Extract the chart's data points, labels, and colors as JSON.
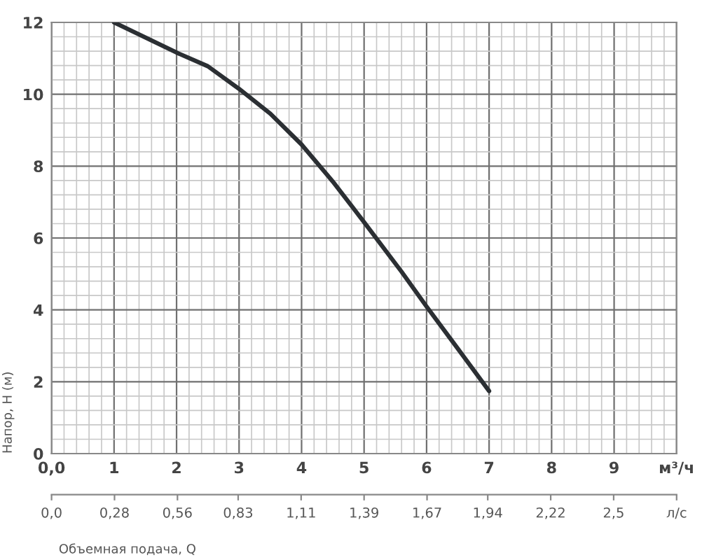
{
  "chart_data": {
    "type": "line",
    "xlabel": "Объемная подача, Q",
    "ylabel": "Напор, H (м)",
    "x": [
      1,
      2,
      2.5,
      3,
      3.5,
      4,
      4.5,
      5,
      5.6,
      6,
      6.5,
      7
    ],
    "series": [
      {
        "color": "#2b2f33",
        "values": [
          12,
          11.16,
          10.78,
          10.15,
          9.46,
          8.6,
          7.57,
          6.44,
          5.06,
          4.09,
          2.92,
          1.74
        ]
      }
    ],
    "xlim": [
      0,
      10
    ],
    "ylim": [
      0,
      12
    ],
    "xticks": [
      {
        "value": 0,
        "label": "0,0"
      },
      1,
      2,
      3,
      4,
      5,
      6,
      7,
      8,
      9,
      {
        "value": 10,
        "label": "м³/ч"
      }
    ],
    "yticks": [
      0,
      2,
      4,
      6,
      8,
      10,
      12
    ],
    "x2lim": [
      0,
      2.78
    ],
    "x2ticks": [
      {
        "value": 0,
        "label": "0,0"
      },
      {
        "value": 0.28,
        "label": "0,28"
      },
      {
        "value": 0.56,
        "label": "0,56"
      },
      {
        "value": 0.83,
        "label": "0,83"
      },
      {
        "value": 1.11,
        "label": "1,11"
      },
      {
        "value": 1.39,
        "label": "1,39"
      },
      {
        "value": 1.67,
        "label": "1,67"
      },
      {
        "value": 1.94,
        "label": "1,94"
      },
      {
        "value": 2.22,
        "label": "2,22"
      },
      {
        "value": 2.5,
        "label": "2,5"
      },
      {
        "value": 2.78,
        "label": "л/с"
      }
    ],
    "grid": true,
    "marker": "none",
    "line_style": "solid"
  }
}
